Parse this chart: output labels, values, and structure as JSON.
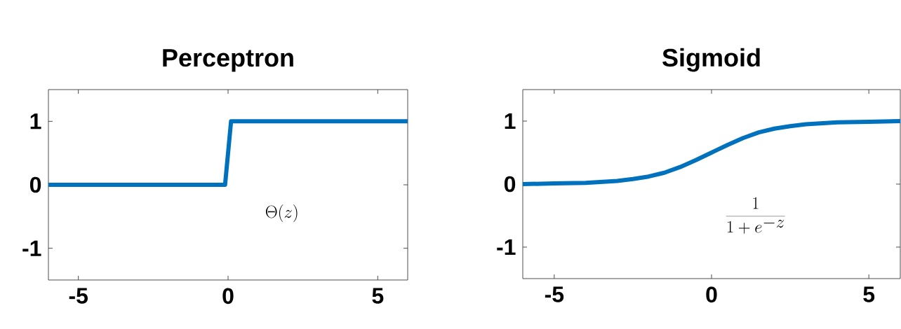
{
  "chart_data": [
    {
      "type": "line",
      "title": "Perceptron",
      "x": [
        -6,
        -0.1,
        0.1,
        6
      ],
      "values": [
        0,
        0,
        1,
        1
      ],
      "color": "#0072bd",
      "xlim": [
        -6,
        6
      ],
      "ylim": [
        -1.5,
        1.5
      ],
      "xticks": [
        -5,
        0,
        5
      ],
      "yticks": [
        -1,
        0,
        1
      ],
      "annotations": [
        "\\Theta(z)"
      ]
    },
    {
      "type": "line",
      "title": "Sigmoid",
      "x": [
        -6,
        -5,
        -4,
        -3,
        -2.5,
        -2,
        -1.5,
        -1,
        -0.5,
        0,
        0.5,
        1,
        1.5,
        2,
        2.5,
        3,
        4,
        5,
        6
      ],
      "values": [
        0,
        0.01,
        0.02,
        0.05,
        0.08,
        0.12,
        0.18,
        0.27,
        0.38,
        0.5,
        0.62,
        0.73,
        0.82,
        0.88,
        0.92,
        0.95,
        0.98,
        0.99,
        1
      ],
      "color": "#0072bd",
      "xlim": [
        -6,
        6
      ],
      "ylim": [
        -1.5,
        1.5
      ],
      "xticks": [
        -5,
        0,
        5
      ],
      "yticks": [
        -1,
        0,
        1
      ],
      "annotations": [
        "\\frac{1}{1+e^{-z}}"
      ]
    }
  ]
}
